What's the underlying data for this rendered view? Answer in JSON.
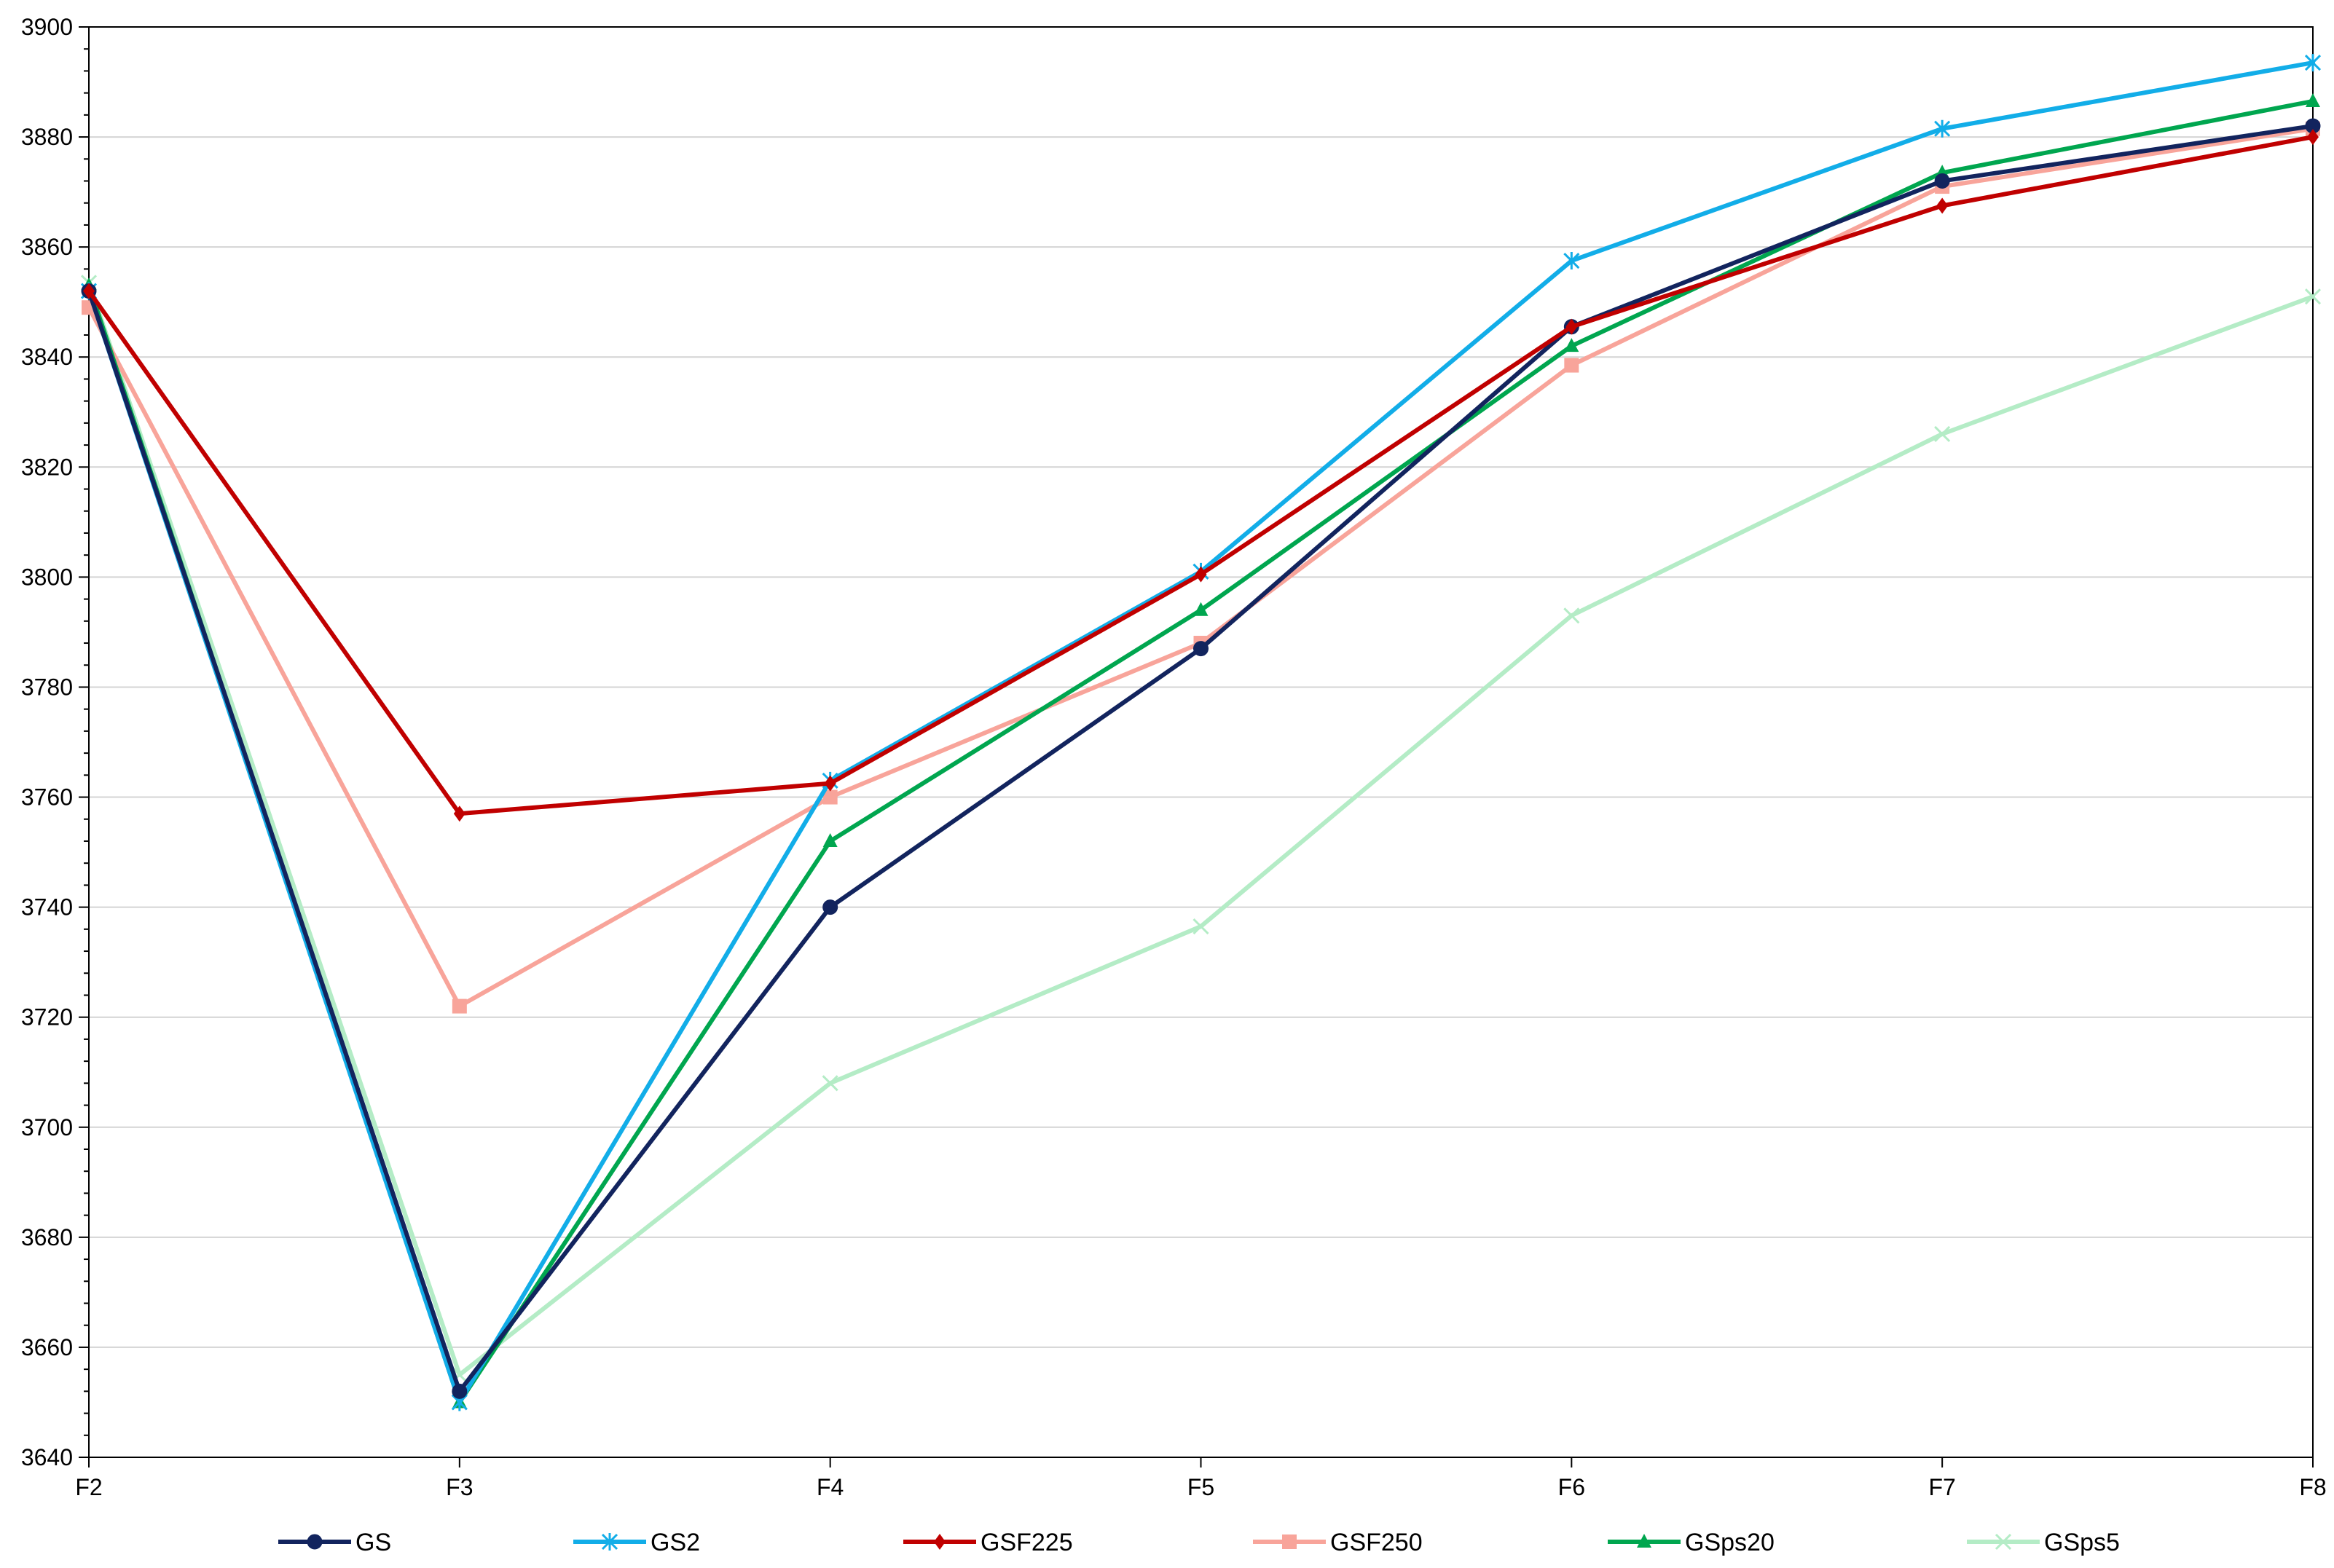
{
  "chart_data": {
    "type": "line",
    "title": "",
    "xlabel": "",
    "ylabel": "",
    "categories": [
      "F2",
      "F3",
      "F4",
      "F5",
      "F6",
      "F7",
      "F8"
    ],
    "ylim": [
      3640,
      3900
    ],
    "yticks": [
      3640,
      3660,
      3680,
      3700,
      3720,
      3740,
      3760,
      3780,
      3800,
      3820,
      3840,
      3860,
      3880,
      3900
    ],
    "grid": "horizontal",
    "legend_position": "bottom",
    "series": [
      {
        "name": "GS",
        "color": "#12245e",
        "marker": "circle",
        "values": [
          3852,
          3652,
          3740,
          3787,
          3845.5,
          3872,
          3882
        ]
      },
      {
        "name": "GS2",
        "color": "#12ade8",
        "marker": "asterisk",
        "values": [
          3852,
          3650,
          3763,
          3801,
          3857.5,
          3881.5,
          3893.5
        ]
      },
      {
        "name": "GSF225",
        "color": "#c00000",
        "marker": "diamond",
        "values": [
          3852,
          3757,
          3762.5,
          3800.5,
          3845.5,
          3867.5,
          3880
        ]
      },
      {
        "name": "GSF250",
        "color": "#f8a49a",
        "marker": "square",
        "values": [
          3849,
          3722,
          3760,
          3788,
          3838.5,
          3871,
          3881.5
        ]
      },
      {
        "name": "GSps20",
        "color": "#00a64f",
        "marker": "triangle",
        "values": [
          3853,
          3650,
          3752,
          3794,
          3842,
          3873.5,
          3886.5
        ]
      },
      {
        "name": "GSps5",
        "color": "#b4ecc6",
        "marker": "x",
        "values": [
          3853.5,
          3655,
          3708,
          3736.5,
          3793,
          3826,
          3851
        ]
      }
    ]
  }
}
